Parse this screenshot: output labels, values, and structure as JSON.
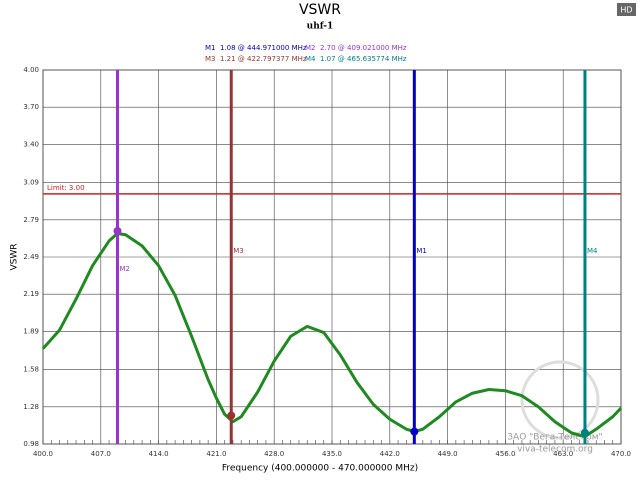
{
  "chart_data": {
    "type": "line",
    "title": "VSWR",
    "subtitle": "uhf-1",
    "badge": "HD",
    "x_label": "Frequency (400.000000 - 470.000000 MHz)",
    "y_label": "VSWR",
    "xlim": [
      400,
      470
    ],
    "ylim": [
      0.98,
      4.0
    ],
    "xticks": [
      {
        "value": 400,
        "label": "400.0"
      },
      {
        "value": 407,
        "label": "407.0"
      },
      {
        "value": 414,
        "label": "414.0"
      },
      {
        "value": 421,
        "label": "421.0"
      },
      {
        "value": 428,
        "label": "428.0"
      },
      {
        "value": 435,
        "label": "435.0"
      },
      {
        "value": 442,
        "label": "442.0"
      },
      {
        "value": 449,
        "label": "449.0"
      },
      {
        "value": 456,
        "label": "456.0"
      },
      {
        "value": 463,
        "label": "463.0"
      },
      {
        "value": 470,
        "label": "470.0"
      }
    ],
    "yticks": [
      0.98,
      1.28,
      1.58,
      1.89,
      2.19,
      2.49,
      2.79,
      3.09,
      {
        "value": 3.4,
        "label": "3.40"
      },
      {
        "value": 3.7,
        "label": "3.70"
      },
      {
        "value": 4.0,
        "label": "4.00"
      }
    ],
    "grid": true,
    "color": "#1f8a1f",
    "x": [
      400,
      402,
      404,
      406,
      408,
      409,
      410,
      412,
      414,
      416,
      418,
      420,
      421,
      422,
      423,
      424,
      426,
      428,
      430,
      432,
      434,
      436,
      438,
      440,
      442,
      444,
      445,
      446,
      448,
      450,
      452,
      454,
      456,
      458,
      460,
      462,
      464,
      465.6,
      467,
      469,
      470
    ],
    "values": [
      1.75,
      1.9,
      2.15,
      2.42,
      2.62,
      2.68,
      2.67,
      2.58,
      2.42,
      2.18,
      1.85,
      1.5,
      1.35,
      1.22,
      1.16,
      1.2,
      1.4,
      1.65,
      1.85,
      1.93,
      1.88,
      1.7,
      1.48,
      1.3,
      1.18,
      1.1,
      1.08,
      1.1,
      1.2,
      1.32,
      1.39,
      1.42,
      1.41,
      1.37,
      1.28,
      1.16,
      1.07,
      1.04,
      1.1,
      1.2,
      1.27
    ],
    "limit": {
      "label": "Limit: 3.00",
      "value": 3.0,
      "color": "#cc2222"
    },
    "markers": [
      {
        "name": "M1",
        "label": "1.08 @ 444.971000 MHz",
        "x": 444.971,
        "value": 1.08,
        "color": "#0000cc"
      },
      {
        "name": "M2",
        "label": "2.70 @ 409.021000 MHz",
        "x": 409.021,
        "value": 2.7,
        "color": "#9933cc"
      },
      {
        "name": "M3",
        "label": "1.21 @ 422.797377 MHz",
        "x": 422.797377,
        "value": 1.21,
        "color": "#993333"
      },
      {
        "name": "M4",
        "label": "1.07 @ 465.635774 MHz",
        "x": 465.635774,
        "value": 1.07,
        "color": "#008080"
      }
    ],
    "watermark": [
      "ЗАО \"Вега-Телеком\"",
      "viva-telecom.org"
    ]
  }
}
